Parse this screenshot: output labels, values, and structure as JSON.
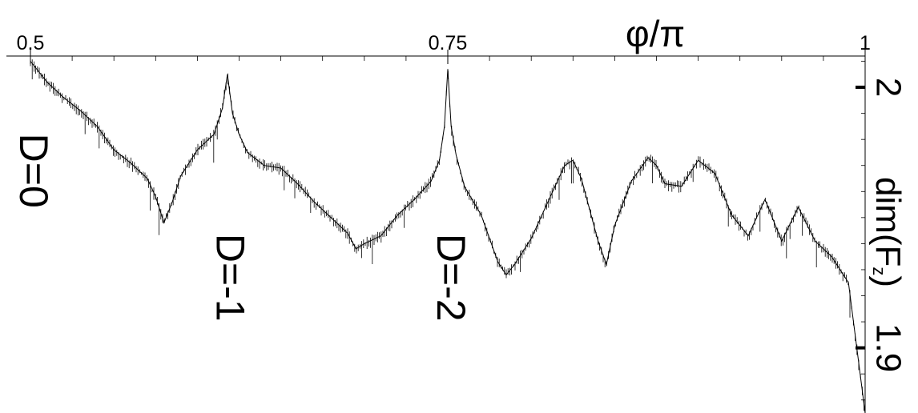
{
  "chart_data": {
    "type": "line",
    "xlabel": "φ/π",
    "ylabel": "dim(F",
    "ylabel_sub": "z",
    "ylabel_close": ")",
    "xlim": [
      0.5,
      1.0
    ],
    "ylim": [
      1.875,
      2.012
    ],
    "xticks": [
      {
        "value": 0.5,
        "label": "0.5"
      },
      {
        "value": 0.75,
        "label": "0.75"
      },
      {
        "value": 1.0,
        "label": "1"
      }
    ],
    "yticks": [
      {
        "value": 2.0,
        "label": "2"
      },
      {
        "value": 1.9,
        "label": "1.9"
      }
    ],
    "grid": false,
    "annotations": [
      {
        "text": "D=0",
        "x": 0.5,
        "y": 1.968
      },
      {
        "text": "D=-1",
        "x": 0.618,
        "y": 1.927
      },
      {
        "text": "D=-2",
        "x": 0.75,
        "y": 1.927
      }
    ],
    "series": [
      {
        "x": [
          0.5,
          0.51,
          0.52,
          0.53,
          0.54,
          0.55,
          0.56,
          0.57,
          0.575,
          0.58,
          0.585,
          0.59,
          0.6,
          0.61,
          0.615,
          0.618,
          0.621,
          0.625,
          0.63,
          0.64,
          0.65,
          0.66,
          0.67,
          0.68,
          0.69,
          0.695,
          0.7,
          0.71,
          0.72,
          0.73,
          0.74,
          0.745,
          0.748,
          0.75,
          0.752,
          0.755,
          0.76,
          0.77,
          0.78,
          0.785,
          0.79,
          0.8,
          0.81,
          0.82,
          0.825,
          0.83,
          0.84,
          0.845,
          0.85,
          0.86,
          0.87,
          0.875,
          0.88,
          0.89,
          0.9,
          0.91,
          0.92,
          0.93,
          0.94,
          0.95,
          0.96,
          0.97,
          0.98,
          0.99,
          1.0
        ],
        "y": [
          2.01,
          2.002,
          1.996,
          1.991,
          1.985,
          1.976,
          1.971,
          1.965,
          1.958,
          1.948,
          1.956,
          1.966,
          1.976,
          1.982,
          1.992,
          2.005,
          1.99,
          1.982,
          1.975,
          1.97,
          1.969,
          1.963,
          1.956,
          1.95,
          1.944,
          1.938,
          1.94,
          1.943,
          1.951,
          1.957,
          1.964,
          1.972,
          1.985,
          2.007,
          1.985,
          1.974,
          1.962,
          1.951,
          1.933,
          1.928,
          1.932,
          1.942,
          1.956,
          1.97,
          1.972,
          1.965,
          1.941,
          1.932,
          1.947,
          1.964,
          1.973,
          1.97,
          1.963,
          1.962,
          1.972,
          1.967,
          1.951,
          1.943,
          1.957,
          1.941,
          1.954,
          1.941,
          1.935,
          1.925,
          1.875
        ]
      }
    ]
  }
}
